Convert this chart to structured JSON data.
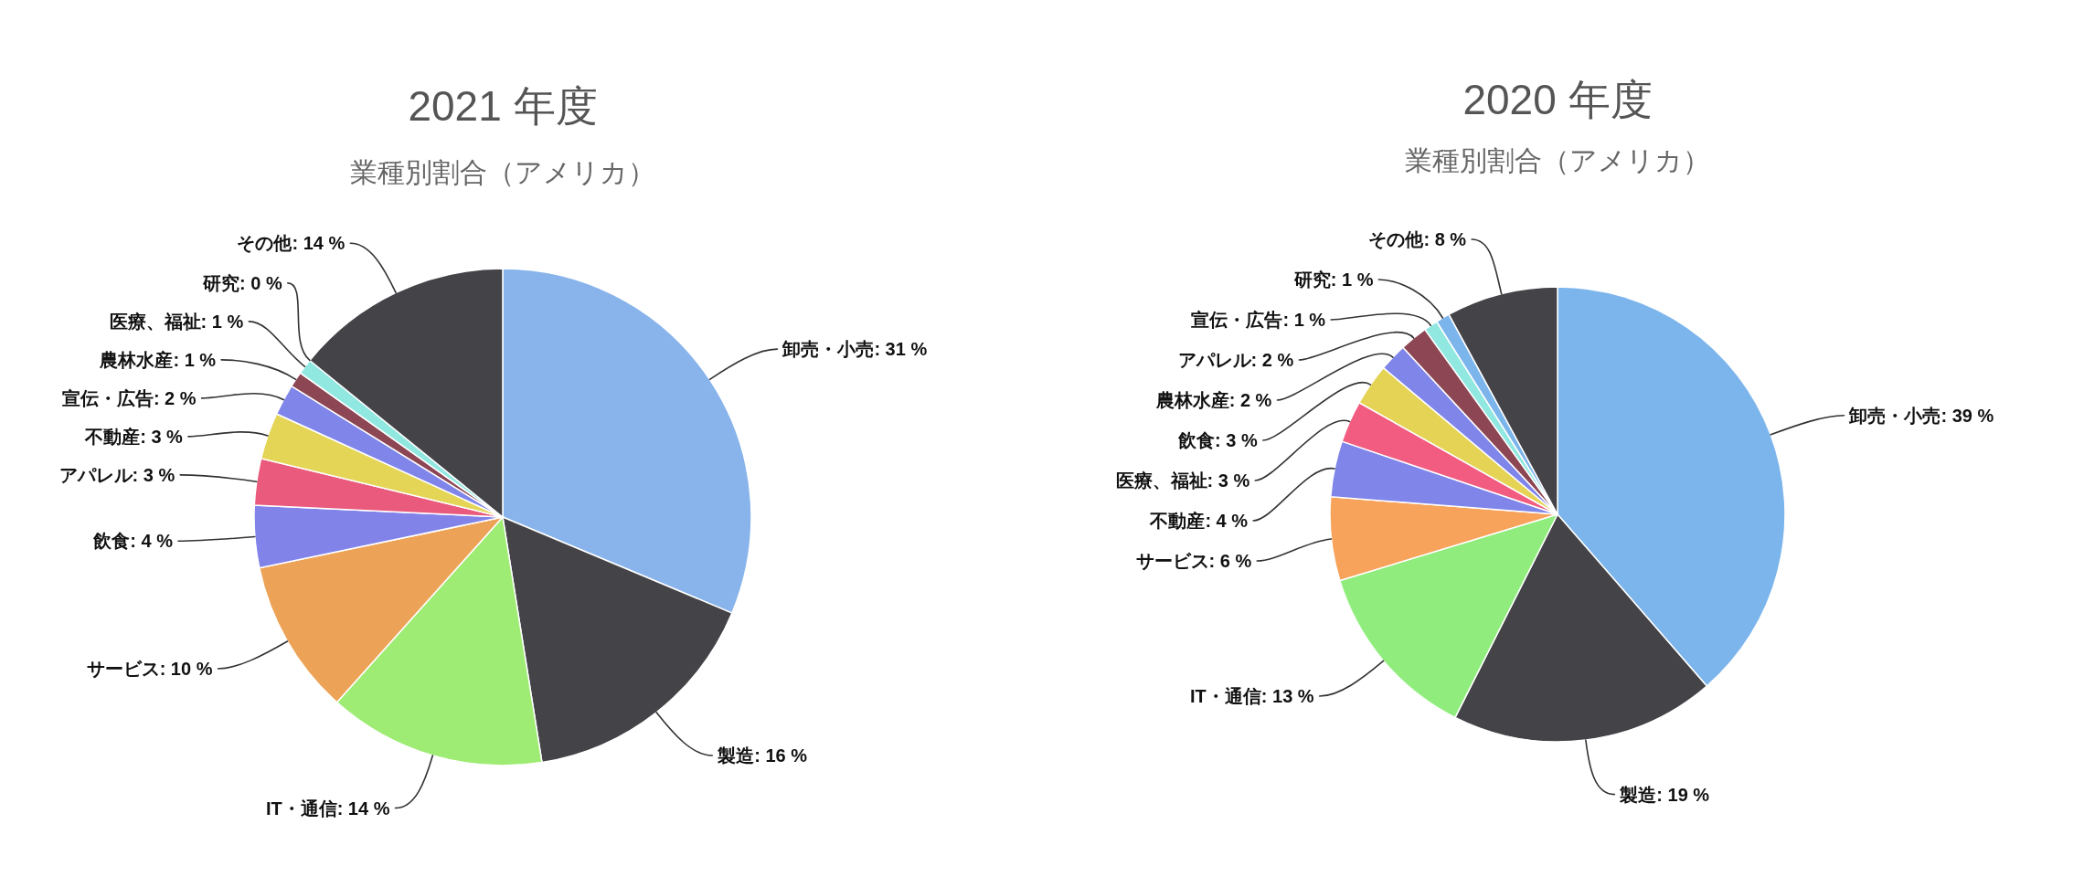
{
  "chart_data": [
    {
      "type": "pie",
      "title": "2021 年度",
      "subtitle": "業種別割合（アメリカ）",
      "categories": [
        "卸売・小売",
        "製造",
        "IT・通信",
        "サービス",
        "飲食",
        "アパレル",
        "不動産",
        "宣伝・広告",
        "農林水産",
        "医療、福祉",
        "研究",
        "その他"
      ],
      "values": [
        31,
        16,
        14,
        10,
        4,
        3,
        3,
        2,
        1,
        1,
        0,
        14
      ],
      "value_labels": [
        ": 31 %",
        ": 16 %",
        ": 14 %",
        ": 10 %",
        ": 4 %",
        ": 3 %",
        ": 3 %",
        ": 2 %",
        ": 1 %",
        ": 1 %",
        ": 0 %",
        ": 14 %"
      ],
      "colors": [
        "#88b4eb",
        "#434348",
        "#9eec74",
        "#eda357",
        "#8283e9",
        "#e95a7d",
        "#e4d556",
        "#8085e9",
        "#8d4653",
        "#91e8e1",
        "#7cb5ec",
        "#434348"
      ]
    },
    {
      "type": "pie",
      "title": "2020 年度",
      "subtitle": "業種別割合（アメリカ）",
      "categories": [
        "卸売・小売",
        "製造",
        "IT・通信",
        "サービス",
        "不動産",
        "医療、福祉",
        "飲食",
        "農林水産",
        "アパレル",
        "宣伝・広告",
        "研究",
        "その他"
      ],
      "values": [
        39,
        19,
        13,
        6,
        4,
        3,
        3,
        2,
        2,
        1,
        1,
        8
      ],
      "value_labels": [
        ": 39 %",
        ": 19 %",
        ": 13 %",
        ": 6 %",
        ": 4 %",
        ": 3 %",
        ": 3 %",
        ": 2 %",
        ": 2 %",
        ": 1 %",
        ": 1 %",
        ": 8 %"
      ],
      "colors": [
        "#7cb5ec",
        "#434348",
        "#90ed7d",
        "#f7a35c",
        "#8085e9",
        "#f15c80",
        "#e4d354",
        "#8085e9",
        "#8d4653",
        "#91e8e1",
        "#7cb5ec",
        "#434348"
      ]
    }
  ]
}
